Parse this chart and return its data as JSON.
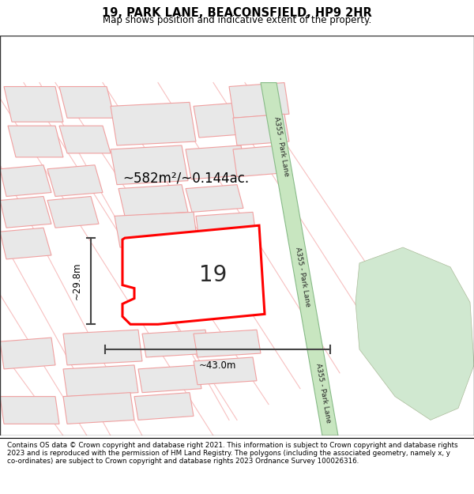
{
  "title": "19, PARK LANE, BEACONSFIELD, HP9 2HR",
  "subtitle": "Map shows position and indicative extent of the property.",
  "footer": "Contains OS data © Crown copyright and database right 2021. This information is subject to Crown copyright and database rights 2023 and is reproduced with the permission of HM Land Registry. The polygons (including the associated geometry, namely x, y co-ordinates) are subject to Crown copyright and database rights 2023 Ordnance Survey 100026316.",
  "area_label": "~582m²/~0.144ac.",
  "number_label": "19",
  "width_label": "~43.0m",
  "height_label": "~29.8m",
  "map_bg": "#ffffff",
  "road_green_fill": "#c8e6c0",
  "road_green_edge": "#88bb88",
  "building_fill": "#e8e8e8",
  "building_stroke": "#f0a0a0",
  "highlight_stroke": "#ff0000",
  "green_patch_color": "#d0e8d0",
  "road_line_color": "#f5b0b0",
  "dim_color": "#444444",
  "text_color": "#222222"
}
